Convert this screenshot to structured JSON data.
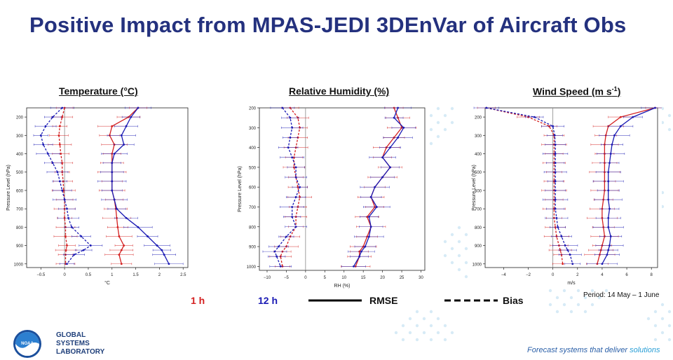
{
  "title": "Positive Impact from MPAS-JEDI 3DEnVar of Aircraft Obs",
  "colors": {
    "title": "#24317e",
    "h1": "#d42020",
    "h12": "#1a1ab4",
    "watermark": "#d7ebf6"
  },
  "legend": {
    "h1": "1 h",
    "h12": "12 h",
    "rmse": "RMSE",
    "bias": "Bias"
  },
  "period": "Period: 14 May – 1 June",
  "footer": {
    "tagline_start": "Forecast systems that deliver ",
    "tagline_end": "solutions",
    "lab_line1": "GLOBAL",
    "lab_line2": "SYSTEMS",
    "lab_line3": "LABORATORY",
    "noaa": "NOAA"
  },
  "panels": {
    "temperature": {
      "title": "Temperature (°C)"
    },
    "humidity": {
      "title": "Relative Humidity (%)"
    },
    "wind": {
      "title_main": "Wind Speed (m s",
      "title_sup": "-1",
      "title_end": ")"
    }
  },
  "chart_data": [
    {
      "type": "line",
      "title": "Temperature (°C)",
      "xlabel": "°C",
      "ylabel": "Pressure Level (hPa)",
      "xlim": [
        -0.8,
        2.6
      ],
      "xticks": [
        -0.5,
        0,
        0.5,
        1,
        1.5,
        2,
        2.5
      ],
      "xticklabels": [
        "−0.5",
        "0",
        "0.5",
        "1",
        "1.5",
        "2",
        "2.5"
      ],
      "ylim": [
        150,
        1020
      ],
      "yticks": [
        200,
        300,
        400,
        500,
        600,
        700,
        800,
        900,
        1000
      ],
      "levels": [
        150,
        200,
        250,
        300,
        350,
        400,
        450,
        500,
        550,
        600,
        650,
        700,
        750,
        800,
        850,
        900,
        925,
        950,
        1000
      ],
      "series": [
        {
          "name": "1 h RMSE",
          "color": "red",
          "dash": false,
          "values": [
            1.55,
            1.35,
            1.0,
            0.95,
            1.05,
            1.0,
            1.0,
            1.0,
            1.0,
            1.0,
            1.05,
            1.08,
            1.1,
            1.12,
            1.15,
            1.25,
            1.2,
            1.15,
            1.2
          ]
        },
        {
          "name": "12 h RMSE",
          "color": "blue",
          "dash": false,
          "values": [
            1.55,
            1.4,
            1.3,
            1.2,
            1.25,
            1.05,
            1.0,
            1.0,
            1.0,
            1.0,
            1.05,
            1.1,
            1.3,
            1.55,
            1.75,
            1.95,
            2.05,
            2.1,
            2.2
          ]
        },
        {
          "name": "1 h Bias",
          "color": "red",
          "dash": true,
          "values": [
            0.0,
            -0.05,
            -0.1,
            -0.12,
            -0.1,
            -0.08,
            -0.05,
            -0.05,
            -0.03,
            -0.02,
            0.0,
            0.0,
            0.0,
            0.02,
            0.02,
            0.05,
            0.03,
            0.02,
            0.02
          ]
        },
        {
          "name": "12 h Bias",
          "color": "blue",
          "dash": true,
          "values": [
            -0.05,
            -0.25,
            -0.4,
            -0.5,
            -0.45,
            -0.35,
            -0.25,
            -0.15,
            -0.1,
            -0.05,
            0.0,
            0.05,
            0.08,
            0.15,
            0.35,
            0.55,
            0.4,
            0.2,
            0.05
          ]
        }
      ]
    },
    {
      "type": "line",
      "title": "Relative Humidity (%)",
      "xlabel": "RH (%)",
      "ylabel": "Pressure Level (hPa)",
      "xlim": [
        -12,
        31
      ],
      "xticks": [
        -10,
        -5,
        0,
        5,
        10,
        15,
        20,
        25,
        30
      ],
      "xticklabels": [
        "−10",
        "−5",
        "0",
        "5",
        "10",
        "15",
        "20",
        "25",
        "30"
      ],
      "ylim": [
        200,
        1020
      ],
      "yticks": [
        200,
        300,
        400,
        500,
        600,
        700,
        800,
        900,
        1000
      ],
      "levels": [
        200,
        250,
        300,
        350,
        400,
        450,
        500,
        550,
        600,
        650,
        700,
        750,
        800,
        850,
        900,
        925,
        950,
        1000
      ],
      "series": [
        {
          "name": "1 h RMSE",
          "color": "red",
          "dash": false,
          "values": [
            23,
            24,
            25,
            23,
            21,
            20,
            22,
            20,
            18,
            17,
            18,
            16,
            17,
            16,
            15,
            14,
            14,
            13
          ]
        },
        {
          "name": "12 h RMSE",
          "color": "blue",
          "dash": false,
          "values": [
            24,
            23,
            25.5,
            24,
            22,
            20,
            22,
            20,
            18,
            17,
            18.5,
            16.5,
            17,
            16.5,
            15.5,
            14.5,
            14,
            12.5
          ]
        },
        {
          "name": "1 h Bias",
          "color": "red",
          "dash": true,
          "values": [
            -4,
            -2,
            -1.5,
            -2,
            -2.5,
            -3,
            -3,
            -2.5,
            -2,
            -1.5,
            -2,
            -2.5,
            -2.5,
            -4,
            -5,
            -6,
            -6.5,
            -6
          ]
        },
        {
          "name": "12 h Bias",
          "color": "blue",
          "dash": true,
          "values": [
            -6,
            -4,
            -3.5,
            -4,
            -4.5,
            -3.5,
            -2.5,
            -2.5,
            -1.5,
            -2.5,
            -3.5,
            -3.5,
            -2.5,
            -5,
            -7,
            -8,
            -7.5,
            -6.5
          ]
        }
      ]
    },
    {
      "type": "line",
      "title": "Wind Speed (m s⁻¹)",
      "xlabel": "m/s",
      "ylabel": "Pressure Level (hPa)",
      "xlim": [
        -5.5,
        8.5
      ],
      "xticks": [
        -4,
        -2,
        0,
        2,
        4,
        6,
        8
      ],
      "xticklabels": [
        "−4",
        "−2",
        "0",
        "2",
        "4",
        "6",
        "8"
      ],
      "ylim": [
        150,
        1020
      ],
      "yticks": [
        200,
        300,
        400,
        500,
        600,
        700,
        800,
        900,
        1000
      ],
      "levels": [
        150,
        200,
        250,
        300,
        350,
        400,
        450,
        500,
        550,
        600,
        650,
        700,
        750,
        800,
        850,
        900,
        925,
        950,
        1000
      ],
      "series": [
        {
          "name": "1 h RMSE",
          "color": "red",
          "dash": false,
          "values": [
            8.3,
            5.5,
            4.5,
            4.3,
            4.2,
            4.2,
            4.2,
            4.2,
            4.2,
            4.2,
            4.1,
            4.0,
            4.0,
            4.1,
            4.2,
            4.0,
            3.9,
            3.8,
            3.6
          ]
        },
        {
          "name": "12 h RMSE",
          "color": "blue",
          "dash": false,
          "values": [
            8.3,
            6.5,
            5.5,
            5.0,
            4.8,
            4.7,
            4.6,
            4.5,
            4.5,
            4.5,
            4.5,
            4.6,
            4.5,
            4.5,
            4.7,
            4.6,
            4.5,
            4.4,
            4.0
          ]
        },
        {
          "name": "1 h Bias",
          "color": "red",
          "dash": true,
          "values": [
            -5.4,
            -2.0,
            -0.3,
            0.1,
            0.1,
            0.1,
            0.1,
            0.1,
            0.1,
            0.1,
            0.1,
            0.1,
            0.1,
            0.2,
            0.3,
            0.5,
            0.6,
            0.7,
            0.8
          ]
        },
        {
          "name": "12 h Bias",
          "color": "blue",
          "dash": true,
          "values": [
            -5.4,
            -1.5,
            0.0,
            0.15,
            0.2,
            0.2,
            0.2,
            0.2,
            0.2,
            0.2,
            0.2,
            0.2,
            0.3,
            0.4,
            0.7,
            1.0,
            1.2,
            1.4,
            1.6
          ]
        }
      ]
    }
  ]
}
